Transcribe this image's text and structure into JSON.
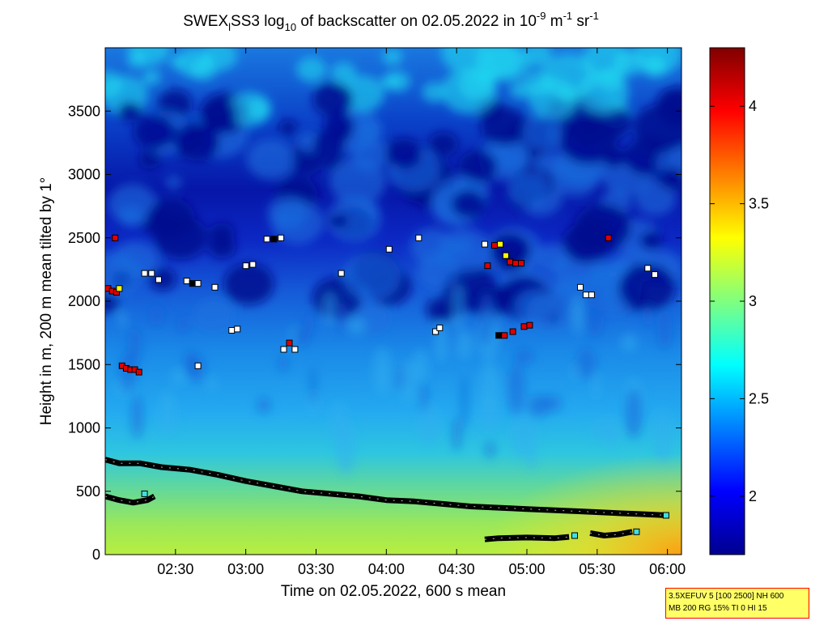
{
  "chart_data": {
    "type": "heatmap",
    "title": {
      "prefix": "SWEX",
      "sub1": "l",
      "mid": "SS3 log",
      "sub2": "10",
      "mid2": " of backscatter on 02.05.2022 in 10",
      "sup1": "-9",
      "mid3": " m",
      "sup2": "-1",
      "mid4": " sr",
      "sup3": "-1"
    },
    "xlabel": "Time on 02.05.2022, 600 s mean",
    "ylabel": "Height in m, 200 m mean tilted by 1°",
    "xlim_hours": [
      2.0,
      6.1
    ],
    "ylim": [
      0,
      4000
    ],
    "x_ticks": [
      {
        "value": 2.5,
        "label": "02:30"
      },
      {
        "value": 3.0,
        "label": "03:00"
      },
      {
        "value": 3.5,
        "label": "03:30"
      },
      {
        "value": 4.0,
        "label": "04:00"
      },
      {
        "value": 4.5,
        "label": "04:30"
      },
      {
        "value": 5.0,
        "label": "05:00"
      },
      {
        "value": 5.5,
        "label": "05:30"
      },
      {
        "value": 6.0,
        "label": "06:00"
      }
    ],
    "y_ticks": [
      {
        "value": 0,
        "label": "0"
      },
      {
        "value": 500,
        "label": "500"
      },
      {
        "value": 1000,
        "label": "1000"
      },
      {
        "value": 1500,
        "label": "1500"
      },
      {
        "value": 2000,
        "label": "2000"
      },
      {
        "value": 2500,
        "label": "2500"
      },
      {
        "value": 3000,
        "label": "3000"
      },
      {
        "value": 3500,
        "label": "3500"
      }
    ],
    "colorbar": {
      "range": [
        1.7,
        4.3
      ],
      "ticks": [
        {
          "value": 2.0,
          "label": "2"
        },
        {
          "value": 2.5,
          "label": "2.5"
        },
        {
          "value": 3.0,
          "label": "3"
        },
        {
          "value": 3.5,
          "label": "3.5"
        },
        {
          "value": 4.0,
          "label": "4"
        }
      ],
      "colormap": "jet"
    },
    "layer_lines": [
      {
        "name": "upper-layer-line",
        "points": [
          [
            2.0,
            750
          ],
          [
            2.1,
            720
          ],
          [
            2.25,
            720
          ],
          [
            2.4,
            690
          ],
          [
            2.6,
            670
          ],
          [
            2.8,
            630
          ],
          [
            3.0,
            580
          ],
          [
            3.2,
            540
          ],
          [
            3.4,
            500
          ],
          [
            3.6,
            480
          ],
          [
            3.8,
            460
          ],
          [
            4.0,
            430
          ],
          [
            4.2,
            420
          ],
          [
            4.4,
            400
          ],
          [
            4.6,
            380
          ],
          [
            4.8,
            370
          ],
          [
            5.0,
            360
          ],
          [
            5.2,
            350
          ],
          [
            5.4,
            340
          ],
          [
            5.6,
            330
          ],
          [
            5.8,
            320
          ],
          [
            6.0,
            310
          ]
        ]
      },
      {
        "name": "lower-layer-line",
        "points": [
          [
            2.0,
            460
          ],
          [
            2.1,
            430
          ],
          [
            2.2,
            410
          ],
          [
            2.3,
            430
          ],
          [
            2.35,
            460
          ]
        ]
      },
      {
        "name": "surface-segment-1",
        "points": [
          [
            4.7,
            120
          ],
          [
            4.8,
            130
          ],
          [
            5.0,
            135
          ],
          [
            5.2,
            130
          ],
          [
            5.3,
            140
          ]
        ]
      },
      {
        "name": "surface-segment-2",
        "points": [
          [
            5.45,
            170
          ],
          [
            5.55,
            150
          ],
          [
            5.65,
            160
          ],
          [
            5.75,
            180
          ]
        ]
      }
    ],
    "cloud_markers": [
      {
        "t": 2.02,
        "h": 2100,
        "c": "#e00000"
      },
      {
        "t": 2.05,
        "h": 2080,
        "c": "#e00000"
      },
      {
        "t": 2.08,
        "h": 2070,
        "c": "#e00000"
      },
      {
        "t": 2.1,
        "h": 2100,
        "c": "#ffff00"
      },
      {
        "t": 2.07,
        "h": 2500,
        "c": "#e00000"
      },
      {
        "t": 2.12,
        "h": 1490,
        "c": "#e00000"
      },
      {
        "t": 2.15,
        "h": 1470,
        "c": "#e00000"
      },
      {
        "t": 2.18,
        "h": 1460,
        "c": "#e00000"
      },
      {
        "t": 2.21,
        "h": 1460,
        "c": "#e00000"
      },
      {
        "t": 2.24,
        "h": 1440,
        "c": "#e00000"
      },
      {
        "t": 2.28,
        "h": 2220,
        "c": "#ffffff"
      },
      {
        "t": 2.33,
        "h": 2220,
        "c": "#ffffff"
      },
      {
        "t": 2.38,
        "h": 2170,
        "c": "#ffffff"
      },
      {
        "t": 2.58,
        "h": 2160,
        "c": "#ffffff"
      },
      {
        "t": 2.62,
        "h": 2140,
        "c": "#000000"
      },
      {
        "t": 2.66,
        "h": 2140,
        "c": "#ffffff"
      },
      {
        "t": 2.78,
        "h": 2110,
        "c": "#ffffff"
      },
      {
        "t": 2.66,
        "h": 1490,
        "c": "#ffffff"
      },
      {
        "t": 2.9,
        "h": 1770,
        "c": "#ffffff"
      },
      {
        "t": 2.94,
        "h": 1780,
        "c": "#ffffff"
      },
      {
        "t": 3.0,
        "h": 2280,
        "c": "#ffffff"
      },
      {
        "t": 3.05,
        "h": 2290,
        "c": "#ffffff"
      },
      {
        "t": 3.15,
        "h": 2490,
        "c": "#ffffff"
      },
      {
        "t": 3.2,
        "h": 2490,
        "c": "#000000"
      },
      {
        "t": 3.25,
        "h": 2500,
        "c": "#ffffff"
      },
      {
        "t": 3.27,
        "h": 1620,
        "c": "#ffffff"
      },
      {
        "t": 3.31,
        "h": 1670,
        "c": "#e00000"
      },
      {
        "t": 3.35,
        "h": 1620,
        "c": "#ffffff"
      },
      {
        "t": 3.68,
        "h": 2220,
        "c": "#ffffff"
      },
      {
        "t": 4.02,
        "h": 2410,
        "c": "#ffffff"
      },
      {
        "t": 4.23,
        "h": 2500,
        "c": "#ffffff"
      },
      {
        "t": 4.35,
        "h": 1760,
        "c": "#ffffff"
      },
      {
        "t": 4.38,
        "h": 1790,
        "c": "#ffffff"
      },
      {
        "t": 4.7,
        "h": 2450,
        "c": "#ffffff"
      },
      {
        "t": 4.72,
        "h": 2280,
        "c": "#e00000"
      },
      {
        "t": 4.77,
        "h": 2440,
        "c": "#e00000"
      },
      {
        "t": 4.81,
        "h": 2450,
        "c": "#ffff00"
      },
      {
        "t": 4.85,
        "h": 2360,
        "c": "#ffff00"
      },
      {
        "t": 4.88,
        "h": 2310,
        "c": "#e00000"
      },
      {
        "t": 4.92,
        "h": 2300,
        "c": "#e00000"
      },
      {
        "t": 4.96,
        "h": 2300,
        "c": "#e00000"
      },
      {
        "t": 4.8,
        "h": 1730,
        "c": "#000000"
      },
      {
        "t": 4.84,
        "h": 1730,
        "c": "#e00000"
      },
      {
        "t": 4.9,
        "h": 1760,
        "c": "#e00000"
      },
      {
        "t": 4.98,
        "h": 1800,
        "c": "#e00000"
      },
      {
        "t": 5.02,
        "h": 1810,
        "c": "#e00000"
      },
      {
        "t": 5.38,
        "h": 2110,
        "c": "#ffffff"
      },
      {
        "t": 5.42,
        "h": 2050,
        "c": "#ffffff"
      },
      {
        "t": 5.46,
        "h": 2050,
        "c": "#ffffff"
      },
      {
        "t": 5.58,
        "h": 2500,
        "c": "#e00000"
      },
      {
        "t": 5.86,
        "h": 2260,
        "c": "#ffffff"
      },
      {
        "t": 5.91,
        "h": 2210,
        "c": "#ffffff"
      },
      {
        "t": 2.28,
        "h": 480,
        "c": "#40e0e0"
      },
      {
        "t": 5.34,
        "h": 150,
        "c": "#40e0e0"
      },
      {
        "t": 5.78,
        "h": 180,
        "c": "#40e0e0"
      },
      {
        "t": 5.99,
        "h": 310,
        "c": "#40e0e0"
      }
    ]
  },
  "info_box": {
    "line1": "3.5XEFUV 5 [100 2500] NH 600",
    "line2": "MB 200 RG 15% TI 0 HI 15"
  }
}
